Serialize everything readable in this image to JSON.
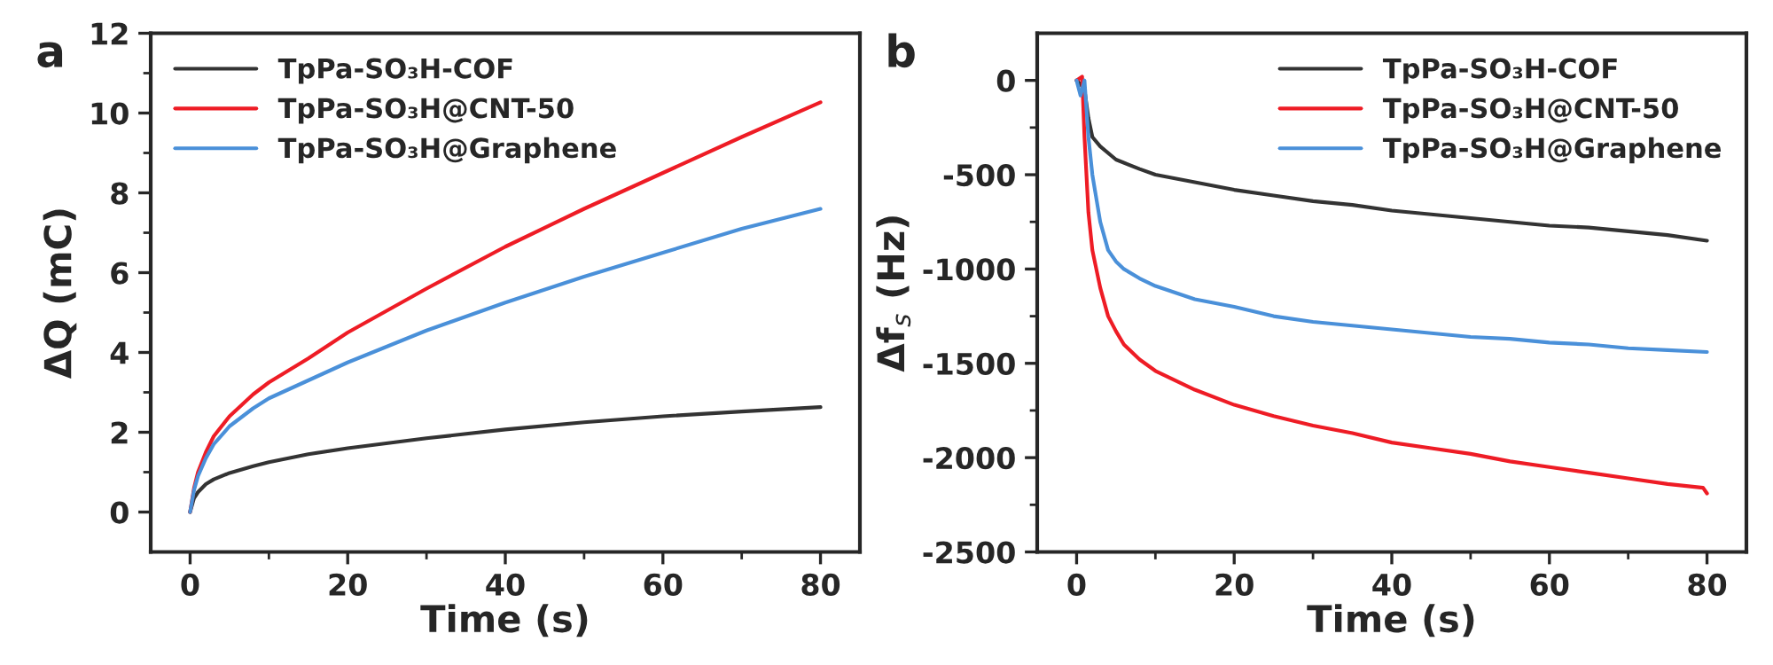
{
  "chart_data": [
    {
      "type": "line",
      "title": "a",
      "xlabel": "Time (s)",
      "ylabel": "ΔQ (mC)",
      "xlim": [
        -5,
        85
      ],
      "ylim": [
        -1,
        12
      ],
      "xticks": [
        0,
        {
          "value": 10,
          "label": null
        },
        20,
        {
          "value": 30,
          "label": null
        },
        40,
        {
          "value": 50,
          "label": null
        },
        60,
        {
          "value": 70,
          "label": null
        },
        80
      ],
      "yticks": [
        0,
        {
          "value": 1,
          "label": null
        },
        2,
        {
          "value": 3,
          "label": null
        },
        4,
        {
          "value": 5,
          "label": null
        },
        6,
        {
          "value": 7,
          "label": null
        },
        8,
        {
          "value": 9,
          "label": null
        },
        10,
        {
          "value": 11,
          "label": null
        },
        12
      ],
      "grid": false,
      "legend": "top left",
      "marker": "none",
      "line_style": "solid",
      "x": [
        0,
        0.5,
        1,
        2,
        3,
        5,
        8,
        10,
        15,
        20,
        30,
        40,
        50,
        60,
        70,
        80
      ],
      "series": [
        {
          "name": "TpPa-SO₃H-COF",
          "color": "#333333",
          "values": [
            0,
            0.35,
            0.5,
            0.7,
            0.82,
            0.98,
            1.15,
            1.25,
            1.45,
            1.6,
            1.85,
            2.07,
            2.25,
            2.4,
            2.52,
            2.63
          ]
        },
        {
          "name": "TpPa-SO₃H@CNT-50",
          "color": "#ee1c25",
          "values": [
            0,
            0.6,
            1.0,
            1.5,
            1.9,
            2.4,
            2.95,
            3.25,
            3.85,
            4.5,
            5.6,
            6.65,
            7.6,
            8.5,
            9.4,
            10.27
          ]
        },
        {
          "name": "TpPa-SO₃H@Graphene",
          "color": "#4a90d9",
          "values": [
            0,
            0.55,
            0.9,
            1.35,
            1.7,
            2.15,
            2.6,
            2.85,
            3.3,
            3.75,
            4.55,
            5.25,
            5.9,
            6.5,
            7.1,
            7.6
          ]
        }
      ]
    },
    {
      "type": "line",
      "title": "b",
      "xlabel": "Time (s)",
      "ylabel": "Δf$_{s}$ (Hz)",
      "xlim": [
        -5,
        85
      ],
      "ylim": [
        -2500,
        250
      ],
      "xticks": [
        0,
        {
          "value": 10,
          "label": null
        },
        20,
        {
          "value": 30,
          "label": null
        },
        40,
        {
          "value": 50,
          "label": null
        },
        60,
        {
          "value": 70,
          "label": null
        },
        80
      ],
      "yticks": [
        -2500,
        {
          "value": -2250,
          "label": null
        },
        -2000,
        {
          "value": -1750,
          "label": null
        },
        -1500,
        {
          "value": -1250,
          "label": null
        },
        -1000,
        {
          "value": -750,
          "label": null
        },
        -500,
        {
          "value": -250,
          "label": null
        },
        0
      ],
      "grid": false,
      "legend": "top right",
      "marker": "none",
      "line_style": "solid",
      "series": [
        {
          "name": "TpPa-SO₃H-COF",
          "color": "#333333",
          "x": [
            0,
            0.5,
            1,
            1.5,
            2,
            3,
            5,
            8,
            10,
            15,
            20,
            25,
            30,
            35,
            40,
            45,
            50,
            55,
            60,
            65,
            70,
            75,
            80
          ],
          "values": [
            0,
            -20,
            -50,
            -200,
            -300,
            -350,
            -420,
            -470,
            -500,
            -540,
            -580,
            -610,
            -640,
            -660,
            -690,
            -710,
            -730,
            -750,
            -770,
            -780,
            -800,
            -820,
            -850
          ]
        },
        {
          "name": "TpPa-SO₃H@CNT-50",
          "color": "#ee1c25",
          "x": [
            0,
            0.7,
            1,
            1.5,
            2,
            3,
            4,
            5,
            6,
            8,
            10,
            15,
            20,
            25,
            30,
            35,
            40,
            45,
            50,
            55,
            60,
            65,
            70,
            75,
            79.5,
            80
          ],
          "values": [
            0,
            20,
            -300,
            -700,
            -900,
            -1100,
            -1250,
            -1330,
            -1400,
            -1480,
            -1540,
            -1640,
            -1720,
            -1780,
            -1830,
            -1870,
            -1920,
            -1950,
            -1980,
            -2020,
            -2050,
            -2080,
            -2110,
            -2140,
            -2160,
            -2190
          ]
        },
        {
          "name": "TpPa-SO₃H@Graphene",
          "color": "#4a90d9",
          "x": [
            0,
            0.5,
            1,
            1.5,
            2,
            3,
            4,
            5,
            6,
            8,
            10,
            15,
            20,
            25,
            30,
            35,
            40,
            45,
            50,
            55,
            60,
            65,
            70,
            75,
            80
          ],
          "values": [
            0,
            -80,
            0,
            -300,
            -500,
            -750,
            -900,
            -960,
            -1000,
            -1050,
            -1090,
            -1160,
            -1200,
            -1250,
            -1280,
            -1300,
            -1320,
            -1340,
            -1360,
            -1370,
            -1390,
            -1400,
            -1420,
            -1430,
            -1440
          ]
        }
      ]
    }
  ]
}
